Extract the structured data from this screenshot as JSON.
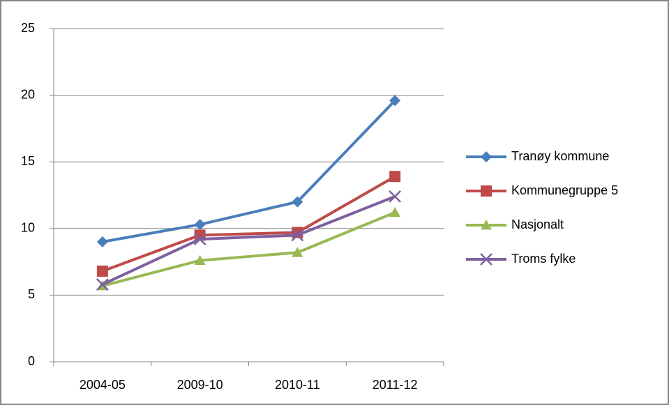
{
  "chart_data": {
    "type": "line",
    "categories": [
      "2004-05",
      "2009-10",
      "2010-11",
      "2011-12"
    ],
    "series": [
      {
        "name": "Tranøy kommune",
        "color": "#4a7ebb",
        "marker": "diamond",
        "values": [
          9.0,
          10.3,
          12.0,
          19.6
        ]
      },
      {
        "name": "Kommunegruppe 5",
        "color": "#be4b48",
        "marker": "square",
        "values": [
          6.8,
          9.5,
          9.7,
          13.9
        ]
      },
      {
        "name": "Nasjonalt",
        "color": "#98b954",
        "marker": "triangle",
        "values": [
          5.7,
          7.6,
          8.2,
          11.2
        ]
      },
      {
        "name": "Troms fylke",
        "color": "#7d60a0",
        "marker": "x",
        "values": [
          5.8,
          9.2,
          9.5,
          12.4
        ]
      }
    ],
    "ylim": [
      0,
      25
    ],
    "yticks": [
      0,
      5,
      10,
      15,
      20,
      25
    ],
    "grid": true,
    "legend": "right"
  }
}
